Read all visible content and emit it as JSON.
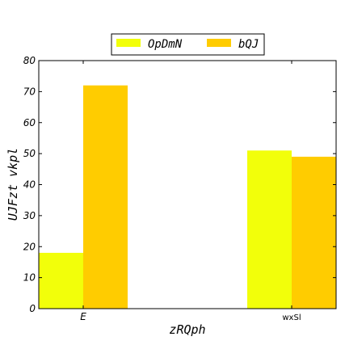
{
  "chart_data": {
    "type": "bar",
    "categories": [
      "E",
      "wxSl"
    ],
    "series": [
      {
        "name": "OpDmN",
        "values": [
          18,
          51
        ],
        "color": "#f2ff0a"
      },
      {
        "name": "bQJ",
        "values": [
          72,
          49
        ],
        "color": "#ffcc00"
      }
    ],
    "xlabel": "zRQph",
    "ylabel": "UJFzt vkpl",
    "ylim": [
      0,
      80
    ],
    "yticks": [
      0,
      10,
      20,
      30,
      40,
      50,
      60,
      70,
      80
    ],
    "legend_position": "top-center",
    "grid": false
  }
}
